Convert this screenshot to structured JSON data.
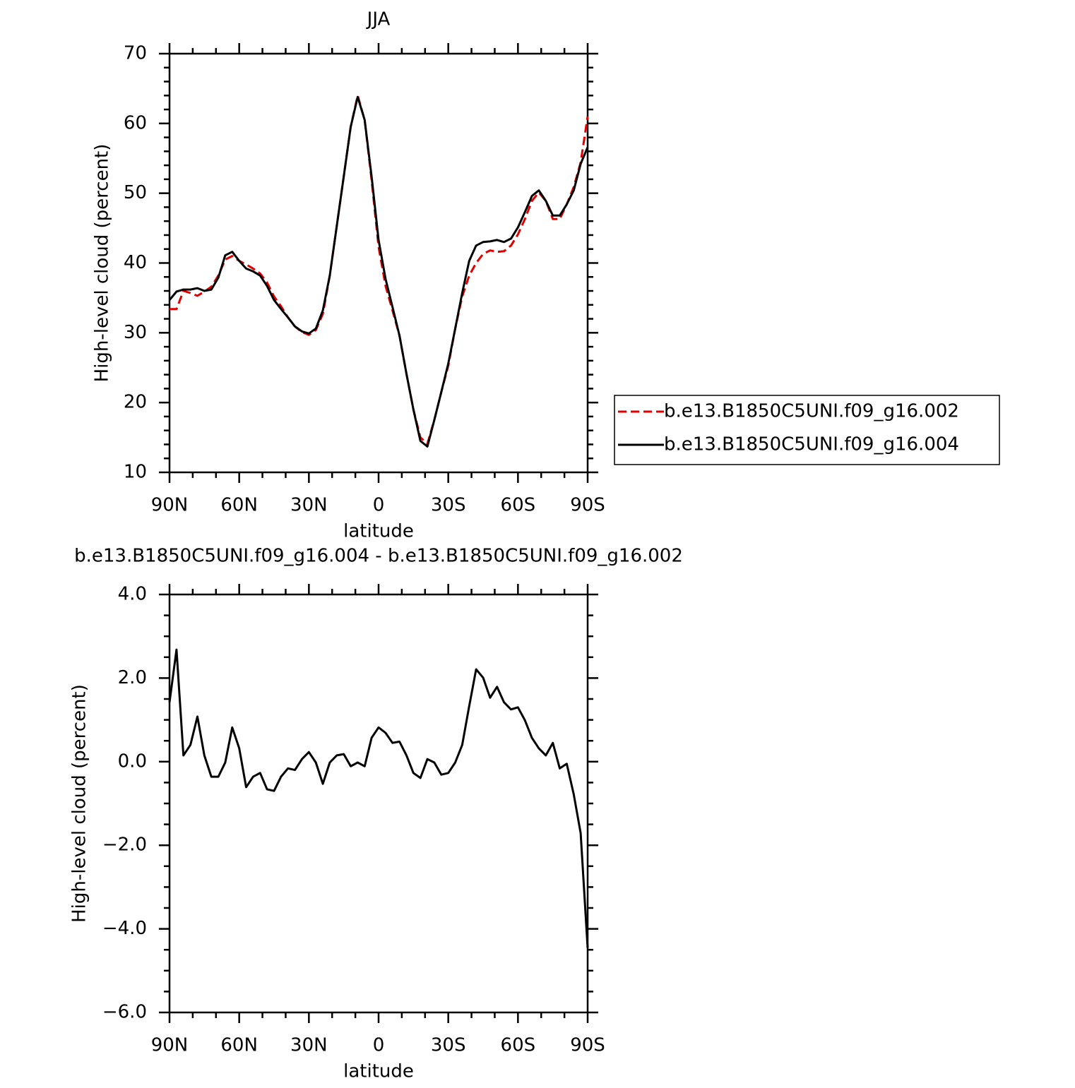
{
  "chart_data": [
    {
      "type": "line",
      "title": "JJA",
      "xlabel": "latitude",
      "ylabel": "High-level cloud (percent)",
      "x": [
        90,
        87,
        84,
        81,
        78,
        75,
        72,
        69,
        66,
        63,
        60,
        57,
        54,
        51,
        48,
        45,
        42,
        39,
        36,
        33,
        30,
        27,
        24,
        21,
        18,
        15,
        12,
        9,
        6,
        3,
        0,
        -3,
        -6,
        -9,
        -12,
        -15,
        -18,
        -21,
        -24,
        -27,
        -30,
        -33,
        -36,
        -39,
        -42,
        -45,
        -48,
        -51,
        -54,
        -57,
        -60,
        -63,
        -66,
        -69,
        -72,
        -75,
        -78,
        -81,
        -84,
        -87,
        -90
      ],
      "series": [
        {
          "name": "b.e13.B1850C5UNI.f09_g16.002",
          "color": "#e00000",
          "dash": "dashed",
          "values": [
            33.4,
            33.4,
            36.0,
            35.7,
            35.3,
            35.9,
            36.6,
            38.2,
            40.5,
            41.0,
            40.3,
            39.8,
            39.2,
            38.5,
            37.2,
            35.2,
            33.8,
            32.2,
            30.9,
            30.1,
            29.7,
            30.4,
            32.7,
            38.2,
            45.3,
            52.4,
            59.5,
            64.0,
            60.5,
            51.9,
            42.3,
            36.7,
            33.2,
            29.6,
            24.1,
            19.0,
            15.0,
            14.1,
            17.5,
            21.5,
            25.3,
            30.6,
            35.2,
            38.2,
            40.0,
            41.3,
            41.8,
            41.6,
            41.7,
            42.5,
            44.1,
            46.3,
            48.9,
            50.1,
            48.9,
            46.3,
            46.3,
            48.4,
            50.9,
            54.4,
            61.0
          ]
        },
        {
          "name": "b.e13.B1850C5UNI.f09_g16.004",
          "color": "#000000",
          "dash": "solid",
          "values": [
            34.7,
            35.9,
            36.2,
            36.2,
            36.4,
            36.0,
            36.2,
            37.9,
            41.1,
            41.6,
            40.3,
            39.2,
            38.8,
            38.2,
            36.7,
            34.7,
            33.4,
            32.2,
            30.9,
            30.2,
            29.9,
            30.6,
            33.2,
            38.2,
            45.3,
            52.4,
            59.5,
            63.8,
            60.5,
            52.4,
            43.3,
            37.7,
            33.7,
            29.6,
            24.1,
            19.0,
            14.5,
            13.7,
            17.5,
            21.5,
            25.6,
            30.6,
            35.7,
            40.3,
            42.5,
            43.0,
            43.1,
            43.3,
            43.0,
            43.5,
            45.1,
            47.3,
            49.6,
            50.4,
            48.9,
            46.8,
            46.8,
            48.4,
            50.4,
            54.2,
            56.6
          ]
        }
      ],
      "xlim": [
        90,
        -90
      ],
      "xticks": [
        {
          "value": 90,
          "label": "90N"
        },
        {
          "value": 60,
          "label": "60N"
        },
        {
          "value": 30,
          "label": "30N"
        },
        0,
        {
          "value": -30,
          "label": "30S"
        },
        {
          "value": -60,
          "label": "60S"
        },
        {
          "value": -90,
          "label": "90S"
        }
      ],
      "xminorticks": [
        80,
        70,
        50,
        40,
        20,
        10,
        -10,
        -20,
        -40,
        -50,
        -70,
        -80
      ],
      "ylim": [
        10,
        70
      ],
      "yticks": [
        10,
        20,
        30,
        40,
        50,
        60,
        70
      ],
      "yminorticks": [
        12,
        14,
        16,
        18,
        22,
        24,
        26,
        28,
        32,
        34,
        36,
        38,
        42,
        44,
        46,
        48,
        52,
        54,
        56,
        58,
        62,
        64,
        66,
        68
      ],
      "legend": "right"
    },
    {
      "type": "line",
      "title": "b.e13.B1850C5UNI.f09_g16.004 - b.e13.B1850C5UNI.f09_g16.002",
      "xlabel": "latitude",
      "ylabel": "High-level cloud (percent)",
      "x": [
        90,
        87,
        84,
        81,
        78,
        75,
        72,
        69,
        66,
        63,
        60,
        57,
        54,
        51,
        48,
        45,
        42,
        39,
        36,
        33,
        30,
        27,
        24,
        21,
        18,
        15,
        12,
        9,
        6,
        3,
        0,
        -3,
        -6,
        -9,
        -12,
        -15,
        -18,
        -21,
        -24,
        -27,
        -30,
        -33,
        -36,
        -39,
        -42,
        -45,
        -48,
        -51,
        -54,
        -57,
        -60,
        -63,
        -66,
        -69,
        -72,
        -75,
        -78,
        -81,
        -84,
        -87,
        -90
      ],
      "series": [
        {
          "color": "#000000",
          "dash": "solid",
          "values": [
            1.42,
            2.68,
            0.15,
            0.4,
            1.08,
            0.15,
            -0.36,
            -0.36,
            -0.02,
            0.82,
            0.32,
            -0.61,
            -0.36,
            -0.27,
            -0.66,
            -0.7,
            -0.36,
            -0.16,
            -0.2,
            0.06,
            0.23,
            -0.02,
            -0.53,
            -0.02,
            0.15,
            0.18,
            -0.11,
            -0.02,
            -0.11,
            0.57,
            0.82,
            0.69,
            0.45,
            0.48,
            0.15,
            -0.27,
            -0.39,
            0.06,
            -0.02,
            -0.31,
            -0.27,
            -0.02,
            0.4,
            1.33,
            2.21,
            2.01,
            1.53,
            1.79,
            1.42,
            1.25,
            1.3,
            0.99,
            0.57,
            0.32,
            0.15,
            0.45,
            -0.16,
            -0.05,
            -0.78,
            -1.71,
            -4.46
          ]
        }
      ],
      "xlim": [
        90,
        -90
      ],
      "xticks": [
        {
          "value": 90,
          "label": "90N"
        },
        {
          "value": 60,
          "label": "60N"
        },
        {
          "value": 30,
          "label": "30N"
        },
        0,
        {
          "value": -30,
          "label": "30S"
        },
        {
          "value": -60,
          "label": "60S"
        },
        {
          "value": -90,
          "label": "90S"
        }
      ],
      "xminorticks": [
        80,
        70,
        50,
        40,
        20,
        10,
        -10,
        -20,
        -40,
        -50,
        -70,
        -80
      ],
      "ylim": [
        -6,
        4
      ],
      "yticks": [
        {
          "value": -6,
          "label": "−6.0"
        },
        {
          "value": -4,
          "label": "−4.0"
        },
        {
          "value": -2,
          "label": "−2.0"
        },
        {
          "value": 0,
          "label": "0.0"
        },
        {
          "value": 2,
          "label": "2.0"
        },
        {
          "value": 4,
          "label": "4.0"
        }
      ],
      "yminorticks": [
        -5.5,
        -5,
        -4.5,
        -3.5,
        -3,
        -2.5,
        -1.5,
        -1,
        -0.5,
        0.5,
        1,
        1.5,
        2.5,
        3,
        3.5
      ]
    }
  ]
}
